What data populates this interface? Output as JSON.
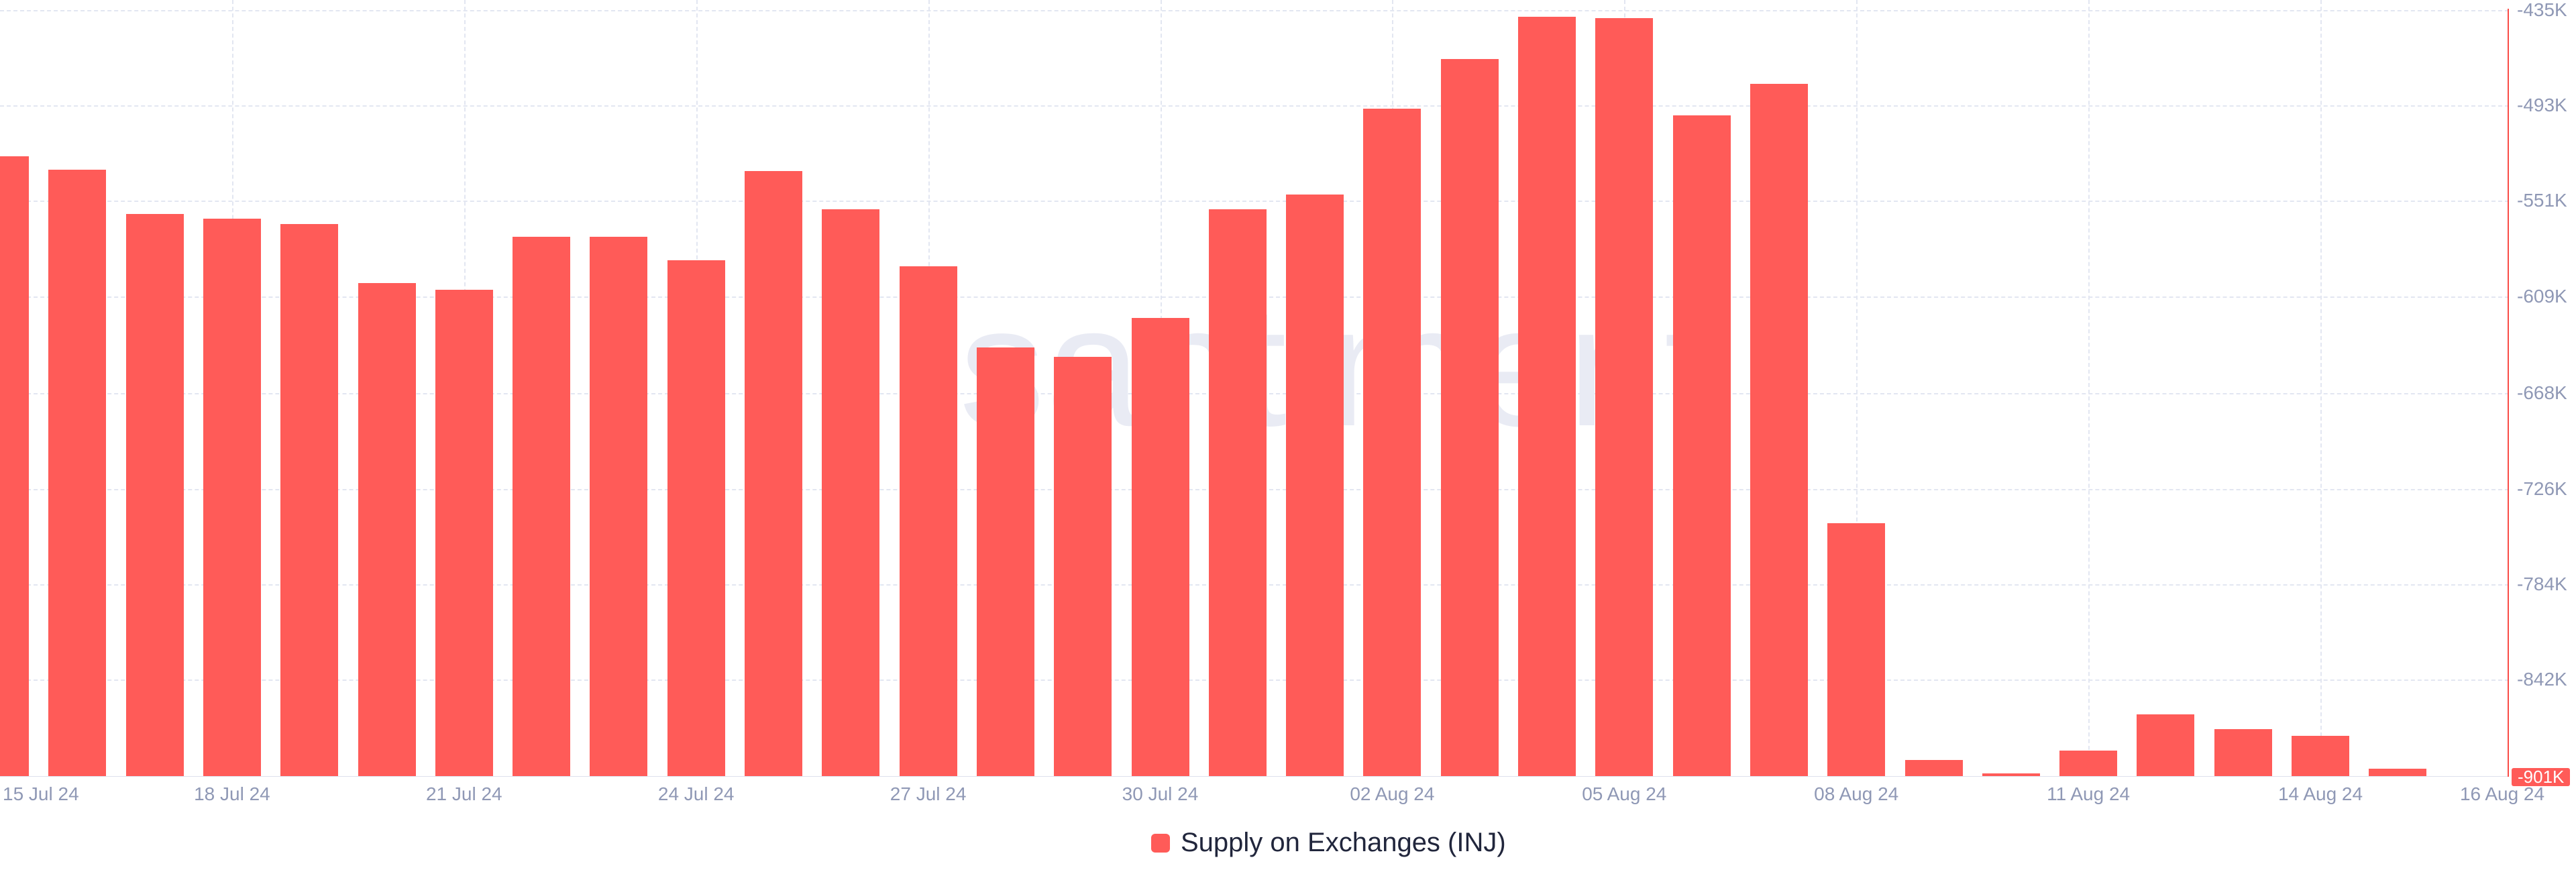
{
  "chart_data": {
    "type": "bar",
    "title": "",
    "legend": "Supply on Exchanges (INJ)",
    "legend_position": "bottom-center",
    "watermark": "santiment",
    "grid": "dashed",
    "current_value_label": "-901K",
    "x": [
      "15 Jul 24",
      "16 Jul 24",
      "17 Jul 24",
      "18 Jul 24",
      "19 Jul 24",
      "20 Jul 24",
      "21 Jul 24",
      "22 Jul 24",
      "23 Jul 24",
      "24 Jul 24",
      "25 Jul 24",
      "26 Jul 24",
      "27 Jul 24",
      "28 Jul 24",
      "29 Jul 24",
      "30 Jul 24",
      "31 Jul 24",
      "01 Aug 24",
      "02 Aug 24",
      "03 Aug 24",
      "04 Aug 24",
      "05 Aug 24",
      "06 Aug 24",
      "07 Aug 24",
      "08 Aug 24",
      "09 Aug 24",
      "10 Aug 24",
      "11 Aug 24",
      "12 Aug 24",
      "13 Aug 24",
      "14 Aug 24",
      "15 Aug 24",
      "16 Aug 24"
    ],
    "values_k": [
      -524,
      -532,
      -559,
      -562,
      -565,
      -601,
      -605,
      -573,
      -573,
      -587,
      -533,
      -556,
      -591,
      -640,
      -646,
      -622,
      -556,
      -547,
      -495,
      -465,
      -439,
      -440,
      -499,
      -480,
      -747,
      -891,
      -899,
      -885,
      -863,
      -872,
      -876,
      -896,
      -901
    ],
    "unit": "K INJ",
    "y_ticks": [
      {
        "label": "-435K",
        "value_k": -435
      },
      {
        "label": "-493K",
        "value_k": -493
      },
      {
        "label": "-551K",
        "value_k": -551
      },
      {
        "label": "-609K",
        "value_k": -609
      },
      {
        "label": "-668K",
        "value_k": -668
      },
      {
        "label": "-726K",
        "value_k": -726
      },
      {
        "label": "-784K",
        "value_k": -784
      },
      {
        "label": "-842K",
        "value_k": -842
      }
    ],
    "ylim_k": [
      -901,
      -429
    ],
    "x_tick_indices": [
      0,
      3,
      6,
      9,
      12,
      15,
      18,
      21,
      24,
      27,
      30,
      32
    ],
    "colors": {
      "bar": "#FF5B58",
      "axis_line": "#FA4B47",
      "badge_bg": "#FF5B58",
      "badge_text": "#FFFFFF",
      "grid": "#E2E6F1",
      "baseline": "#DDE1ED",
      "tick_label": "#8F98B5",
      "legend_text": "#21263C",
      "watermark": "#E9EBF4",
      "background": "#FFFFFF"
    }
  }
}
